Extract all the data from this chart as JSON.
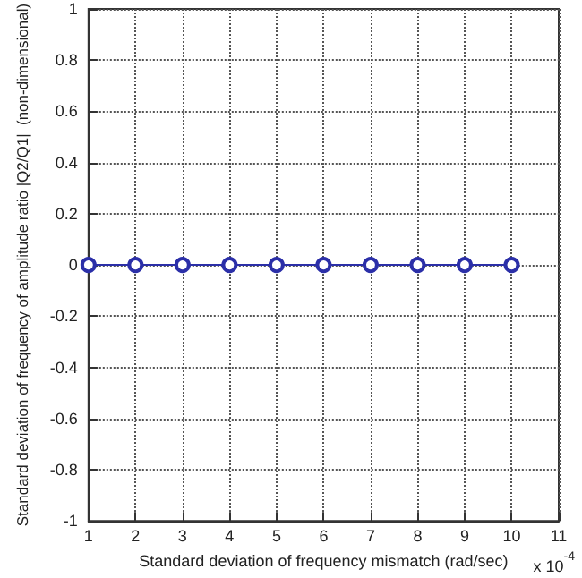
{
  "chart_data": {
    "type": "line",
    "x": [
      1,
      2,
      3,
      4,
      5,
      6,
      7,
      8,
      9,
      10
    ],
    "series": [
      {
        "color": "#2b2fa8",
        "values": [
          0,
          0,
          0,
          0,
          0,
          0,
          0,
          0,
          0,
          0
        ]
      }
    ],
    "xlim": [
      1,
      11
    ],
    "xticks": [
      1,
      2,
      3,
      4,
      5,
      6,
      7,
      8,
      9,
      10,
      11
    ],
    "ylim": [
      -1,
      1
    ],
    "yticks": [
      -1,
      -0.8,
      -0.6,
      -0.4,
      -0.2,
      0,
      0.2,
      0.4,
      0.6,
      0.8,
      1
    ],
    "xlabel": "Standard deviation of frequency mismatch (rad/sec)",
    "ylabel": "Standard deviation of frequency of amplitude ratio |Q2/Q1|  (non-dimensional)",
    "annotations": [
      "x 10$^{-4}$"
    ],
    "grid": true,
    "marker": "circle",
    "line_style": "solid"
  }
}
